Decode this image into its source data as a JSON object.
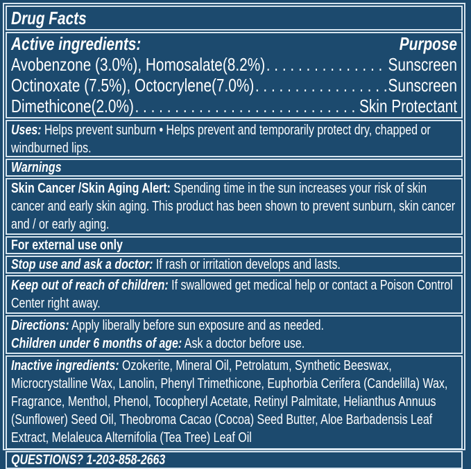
{
  "title": "Drug Facts",
  "active": {
    "heading": "Active ingredients:",
    "purpose_heading": "Purpose",
    "rows": [
      {
        "ingredient": "Avobenzone (3.0%), Homosalate(8.2%)",
        "purpose": "Sunscreen"
      },
      {
        "ingredient": "Octinoxate (7.5%), Octocrylene(7.0%)",
        "purpose": "Sunscreen"
      },
      {
        "ingredient": "Dimethicone(2.0%)",
        "purpose": "Skin Protectant"
      }
    ]
  },
  "uses": {
    "label": "Uses:",
    "text": " Helps prevent sunburn • Helps prevent and temporarily protect dry, chapped or windburned lips."
  },
  "warnings": {
    "heading": "Warnings",
    "skin_alert_label": "Skin Cancer /Skin Aging Alert:",
    "skin_alert_text": " Spending time in the sun increases your risk of skin cancer and early skin aging. This product has been shown to prevent sunburn, skin cancer and / or early aging.",
    "external": "For external use only",
    "stop_label": "Stop use and ask a doctor:",
    "stop_text": " If rash or irritation develops and lasts.",
    "keep_label": "Keep out of reach of children:",
    "keep_text": " If swallowed get medical help or contact a Poison Control Center right away."
  },
  "directions": {
    "label": "Directions:",
    "text": " Apply liberally before sun exposure and as needed.",
    "children_label": "Children under 6 months of age:",
    "children_text": " Ask a doctor before use."
  },
  "inactive": {
    "label": "Inactive ingredients:",
    "text": " Ozokerite, Mineral Oil, Petrolatum, Synthetic Beeswax, Microcrystalline Wax, Lanolin, Phenyl Trimethicone, Euphorbia Cerifera (Candelilla) Wax, Fragrance, Menthol, Phenol, Tocopheryl Acetate, Retinyl Palmitate, Helianthus Annuus (Sunflower) Seed Oil, Theobroma Cacao (Cocoa) Seed Butter, Aloe Barbadensis Leaf Extract, Melaleuca Alternifolia (Tea Tree) Leaf Oil"
  },
  "questions": "QUESTIONS? 1-203-858-2663",
  "colors": {
    "background": "#1c4a6e",
    "border": "#d8e6f0",
    "text": "#ffffff"
  }
}
